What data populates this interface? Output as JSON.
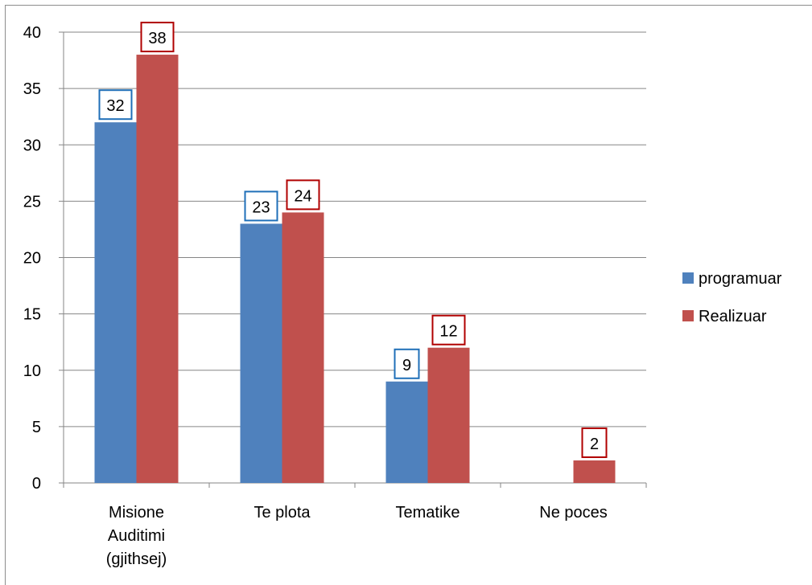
{
  "chart_data": {
    "type": "bar",
    "title": "",
    "xlabel": "",
    "ylabel": "",
    "ylim": [
      0,
      40
    ],
    "yticks": [
      0,
      5,
      10,
      15,
      20,
      25,
      30,
      35,
      40
    ],
    "grid": true,
    "legend_position": "right",
    "categories": [
      [
        "Misione",
        "Auditimi",
        "(gjithsej)"
      ],
      [
        "Te plota"
      ],
      [
        "Tematike"
      ],
      [
        "Ne poces"
      ]
    ],
    "series": [
      {
        "name": "programuar",
        "color": "#4f81bd",
        "label_border": "#1f6fb8",
        "values": [
          32,
          23,
          9,
          null
        ]
      },
      {
        "name": "Realizuar",
        "color": "#c0504d",
        "label_border": "#b00000",
        "values": [
          38,
          24,
          12,
          2
        ]
      }
    ]
  }
}
